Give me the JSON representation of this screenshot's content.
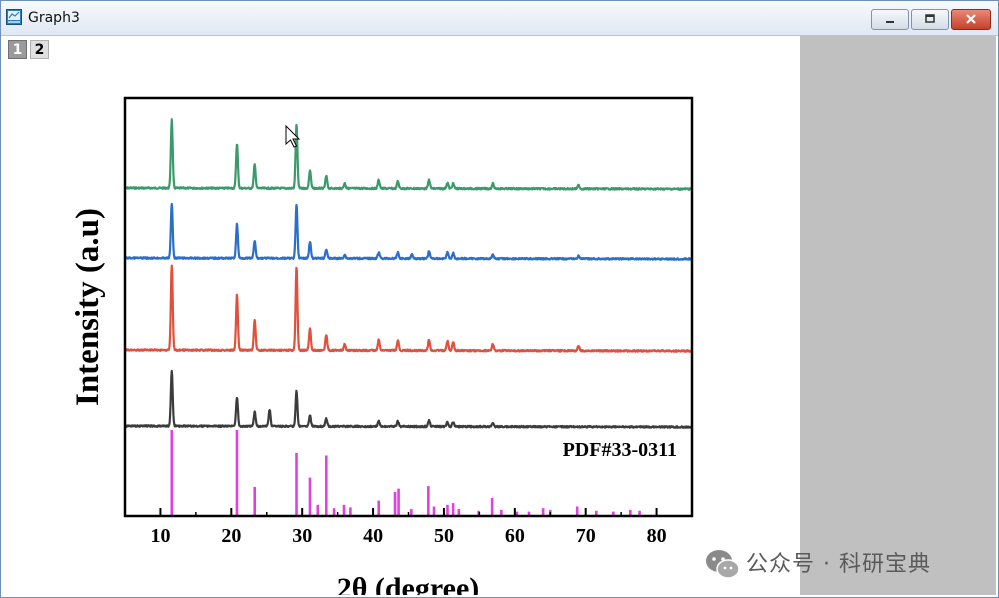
{
  "window": {
    "title": "Graph3",
    "icon": "origin-graph-icon",
    "buttons": [
      "minimize",
      "maximize",
      "close"
    ]
  },
  "layer_tabs": [
    {
      "label": "1"
    },
    {
      "label": "2"
    }
  ],
  "colors": {
    "green": "#3a9a6a",
    "blue": "#2a6fc8",
    "red": "#e0503c",
    "black": "#3c3c3c",
    "magenta": "#e040e0"
  },
  "chart_data": {
    "type": "line",
    "title": "",
    "xlabel": "2θ (degree)",
    "ylabel": "Intensity (a.u)",
    "xlim": [
      5,
      85
    ],
    "x_ticks": [
      "10",
      "20",
      "30",
      "40",
      "50",
      "60",
      "70",
      "80"
    ],
    "grid": false,
    "reference_label": "PDF#33-0311",
    "series": [
      {
        "color": "#3a9a6a",
        "peaks": [
          [
            11.6,
            0.95
          ],
          [
            20.8,
            0.62
          ],
          [
            23.3,
            0.33
          ],
          [
            29.2,
            0.88
          ],
          [
            31.1,
            0.25
          ],
          [
            33.4,
            0.17
          ],
          [
            36.0,
            0.07
          ],
          [
            40.8,
            0.12
          ],
          [
            43.5,
            0.1
          ],
          [
            47.9,
            0.12
          ],
          [
            50.5,
            0.08
          ],
          [
            51.3,
            0.07
          ],
          [
            56.9,
            0.07
          ],
          [
            69.0,
            0.05
          ]
        ]
      },
      {
        "color": "#2a6fc8",
        "peaks": [
          [
            11.6,
            0.88
          ],
          [
            20.8,
            0.55
          ],
          [
            23.3,
            0.28
          ],
          [
            29.2,
            0.86
          ],
          [
            31.1,
            0.27
          ],
          [
            33.4,
            0.15
          ],
          [
            36.0,
            0.06
          ],
          [
            40.8,
            0.1
          ],
          [
            43.5,
            0.1
          ],
          [
            45.5,
            0.07
          ],
          [
            47.9,
            0.12
          ],
          [
            50.5,
            0.1
          ],
          [
            51.3,
            0.09
          ],
          [
            56.9,
            0.07
          ],
          [
            69.0,
            0.05
          ]
        ]
      },
      {
        "color": "#e0503c",
        "peaks": [
          [
            11.6,
            1.0
          ],
          [
            20.8,
            0.65
          ],
          [
            23.3,
            0.36
          ],
          [
            29.2,
            0.98
          ],
          [
            31.1,
            0.26
          ],
          [
            33.4,
            0.18
          ],
          [
            36.0,
            0.08
          ],
          [
            40.8,
            0.13
          ],
          [
            43.5,
            0.12
          ],
          [
            47.9,
            0.13
          ],
          [
            50.5,
            0.11
          ],
          [
            51.3,
            0.1
          ],
          [
            56.9,
            0.08
          ],
          [
            69.0,
            0.06
          ]
        ]
      },
      {
        "color": "#3c3c3c",
        "peaks": [
          [
            11.6,
            0.85
          ],
          [
            20.8,
            0.45
          ],
          [
            23.3,
            0.22
          ],
          [
            25.4,
            0.26
          ],
          [
            29.2,
            0.55
          ],
          [
            31.1,
            0.17
          ],
          [
            33.4,
            0.12
          ],
          [
            40.8,
            0.08
          ],
          [
            43.5,
            0.08
          ],
          [
            47.9,
            0.09
          ],
          [
            50.5,
            0.07
          ],
          [
            51.3,
            0.07
          ],
          [
            56.9,
            0.05
          ]
        ]
      }
    ],
    "reference": {
      "color": "#e040e0",
      "sticks": [
        [
          11.6,
          1.0
        ],
        [
          20.8,
          1.0
        ],
        [
          23.3,
          0.33
        ],
        [
          29.2,
          0.73
        ],
        [
          31.1,
          0.44
        ],
        [
          33.4,
          0.7
        ],
        [
          32.2,
          0.12
        ],
        [
          34.5,
          0.08
        ],
        [
          35.9,
          0.12
        ],
        [
          36.8,
          0.09
        ],
        [
          40.8,
          0.17
        ],
        [
          43.1,
          0.27
        ],
        [
          43.6,
          0.31
        ],
        [
          45.4,
          0.07
        ],
        [
          47.8,
          0.34
        ],
        [
          48.6,
          0.1
        ],
        [
          50.5,
          0.12
        ],
        [
          51.3,
          0.14
        ],
        [
          52.1,
          0.07
        ],
        [
          54.9,
          0.05
        ],
        [
          56.8,
          0.2
        ],
        [
          58.1,
          0.06
        ],
        [
          60.3,
          0.04
        ],
        [
          62.0,
          0.04
        ],
        [
          64.0,
          0.08
        ],
        [
          65.0,
          0.06
        ],
        [
          68.8,
          0.1
        ],
        [
          71.5,
          0.05
        ],
        [
          73.9,
          0.04
        ],
        [
          76.3,
          0.06
        ],
        [
          77.6,
          0.05
        ]
      ]
    }
  },
  "watermark": {
    "text": "公众号 · 科研宝典",
    "icon": "wechat-icon"
  }
}
